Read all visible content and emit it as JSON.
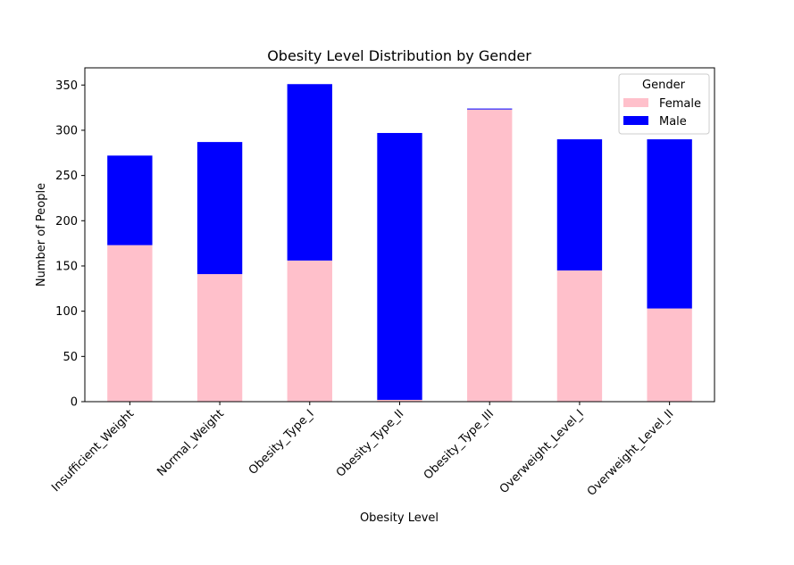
{
  "chart_data": {
    "type": "bar",
    "stacked": true,
    "title": "Obesity Level Distribution by Gender",
    "xlabel": "Obesity Level",
    "ylabel": "Number of People",
    "categories": [
      "Insufficient_Weight",
      "Normal_Weight",
      "Obesity_Type_I",
      "Obesity_Type_II",
      "Obesity_Type_III",
      "Overweight_Level_I",
      "Overweight_Level_II"
    ],
    "series": [
      {
        "name": "Female",
        "color": "#ffc0cb",
        "values": [
          173,
          141,
          156,
          2,
          323,
          145,
          103
        ]
      },
      {
        "name": "Male",
        "color": "#0000ff",
        "values": [
          99,
          146,
          195,
          295,
          1,
          145,
          187
        ]
      }
    ],
    "ylim": [
      0,
      369
    ],
    "yticks": [
      0,
      50,
      100,
      150,
      200,
      250,
      300,
      350
    ],
    "legend": {
      "title": "Gender",
      "placement": "top-right"
    },
    "grid": false
  }
}
